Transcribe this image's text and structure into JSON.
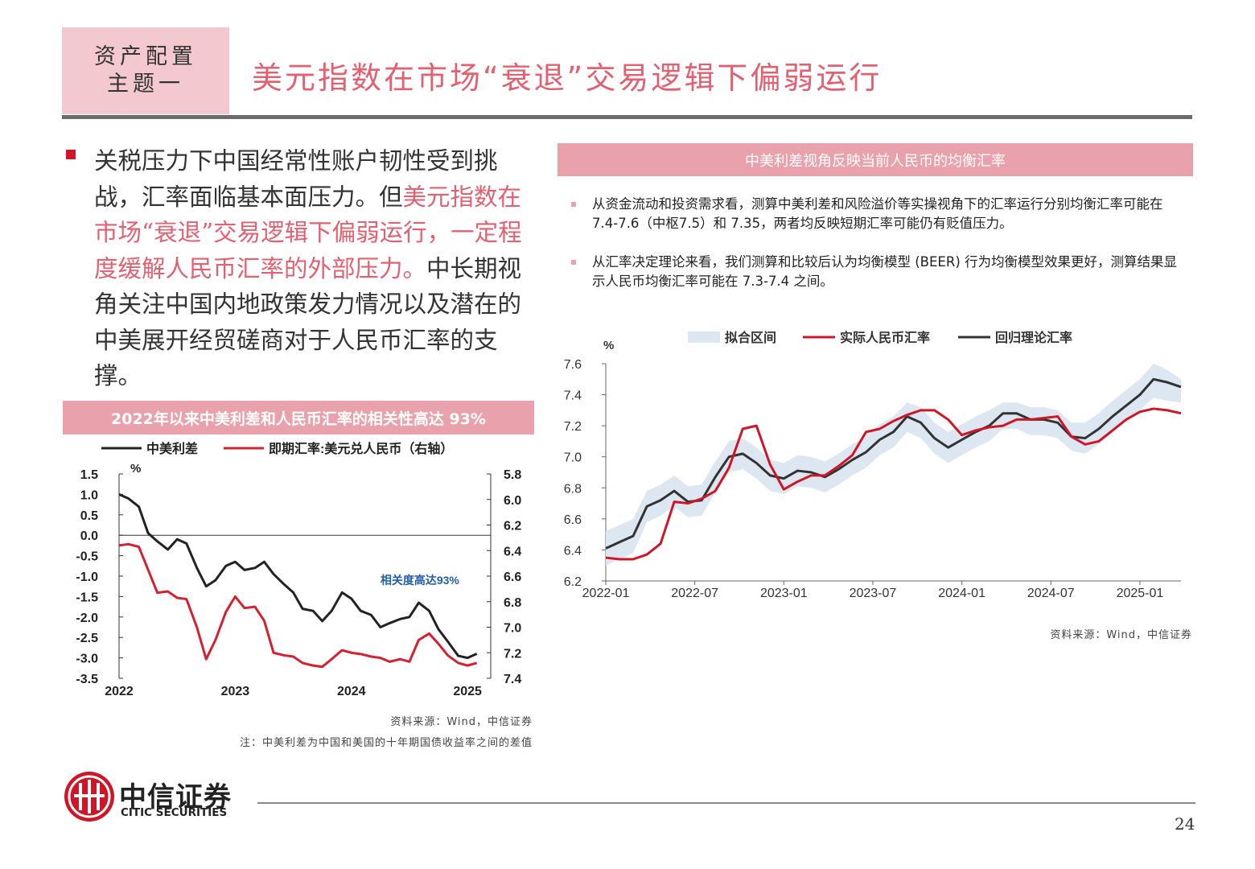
{
  "header": {
    "section_tag_line1": "资产配置",
    "section_tag_line2": "主题一",
    "title": "美元指数在市场“衰退”交易逻辑下偏弱运行"
  },
  "main_text": {
    "part1": "关税压力下中国经常性账户韧性受到挑战，汇率面临基本面压力。但",
    "highlight": "美元指数在市场“衰退”交易逻辑下偏弱运行，一定程度缓解人民币汇率的外部压力。",
    "part2": "中长期视角关注中国内地政策发力情况以及潜在的中美展开经贸磋商对于人民币汇率的支撑。"
  },
  "left_panel": {
    "title": "2022年以来中美利差和人民币汇率的相关性高达 93%",
    "source": "资料来源：Wind，中信证券",
    "note": "注：中美利差为中国和美国的十年期国债收益率之间的差值"
  },
  "right_panel": {
    "title": "中美利差视角反映当前人民币的均衡汇率",
    "bullets": [
      "从资金流动和投资需求看，测算中美利差和风险溢价等实操视角下的汇率运行分别均衡汇率可能在 7.4-7.6（中枢7.5）和 7.35，两者均反映短期汇率可能仍有贬值压力。",
      "从汇率决定理论来看，我们测算和比较后认为均衡模型 (BEER) 行为均衡模型效果更好，测算结果显示人民币均衡汇率可能在 7.3-7.4 之间。"
    ],
    "source": "资料来源：Wind，中信证券"
  },
  "footer": {
    "logo_cn": "中信证券",
    "logo_en": "CITIC SECURITIES",
    "page_number": "24"
  },
  "chart_data": [
    {
      "type": "line",
      "legend": [
        "中美利差",
        "即期汇率:美元兑人民币（右轴）"
      ],
      "ylabel": "%",
      "ylim": [
        -3.5,
        1.5
      ],
      "y_ticks": [
        "1.5",
        "1.0",
        "0.5",
        "0.0",
        "-0.5",
        "-1.0",
        "-1.5",
        "-2.0",
        "-2.5",
        "-3.0",
        "-3.5"
      ],
      "y2lim": [
        5.8,
        7.4
      ],
      "y2_reversed": true,
      "y2_ticks": [
        "5.8",
        "6.0",
        "6.2",
        "6.4",
        "6.6",
        "6.8",
        "7.0",
        "7.2",
        "7.4"
      ],
      "x_ticks": [
        "2022",
        "2023",
        "2024",
        "2025"
      ],
      "xlim": [
        2022.0,
        2025.2
      ],
      "annotation": "相关度高达93%",
      "series": [
        {
          "name": "中美利差",
          "color": "#222222",
          "x": [
            2022.0,
            2022.08,
            2022.17,
            2022.25,
            2022.33,
            2022.42,
            2022.5,
            2022.58,
            2022.67,
            2022.75,
            2022.83,
            2022.92,
            2023.0,
            2023.08,
            2023.17,
            2023.25,
            2023.33,
            2023.42,
            2023.5,
            2023.58,
            2023.67,
            2023.75,
            2023.83,
            2023.92,
            2024.0,
            2024.08,
            2024.17,
            2024.25,
            2024.33,
            2024.42,
            2024.5,
            2024.58,
            2024.67,
            2024.75,
            2024.83,
            2024.92,
            2025.0,
            2025.08
          ],
          "values": [
            1.0,
            0.9,
            0.7,
            0.05,
            -0.15,
            -0.35,
            -0.1,
            -0.2,
            -0.8,
            -1.25,
            -1.1,
            -0.75,
            -0.65,
            -0.85,
            -0.8,
            -0.65,
            -0.95,
            -1.2,
            -1.4,
            -1.8,
            -1.85,
            -2.1,
            -1.85,
            -1.4,
            -1.55,
            -1.85,
            -1.95,
            -2.25,
            -2.15,
            -2.05,
            -2.0,
            -1.65,
            -1.85,
            -2.3,
            -2.6,
            -2.95,
            -3.0,
            -2.9
          ]
        },
        {
          "name": "即期汇率:美元兑人民币（右轴）",
          "color": "#d6202e",
          "axis": "right",
          "x": [
            2022.0,
            2022.08,
            2022.17,
            2022.25,
            2022.33,
            2022.42,
            2022.5,
            2022.58,
            2022.67,
            2022.75,
            2022.83,
            2022.92,
            2023.0,
            2023.08,
            2023.17,
            2023.25,
            2023.33,
            2023.42,
            2023.5,
            2023.58,
            2023.67,
            2023.75,
            2023.83,
            2023.92,
            2024.0,
            2024.08,
            2024.17,
            2024.25,
            2024.33,
            2024.42,
            2024.5,
            2024.58,
            2024.67,
            2024.75,
            2024.83,
            2024.92,
            2025.0,
            2025.08
          ],
          "values": [
            6.36,
            6.35,
            6.37,
            6.55,
            6.73,
            6.72,
            6.77,
            6.78,
            7.0,
            7.25,
            7.1,
            6.88,
            6.76,
            6.85,
            6.84,
            6.95,
            7.2,
            7.22,
            7.23,
            7.28,
            7.3,
            7.31,
            7.25,
            7.18,
            7.2,
            7.21,
            7.23,
            7.24,
            7.27,
            7.25,
            7.27,
            7.1,
            7.05,
            7.13,
            7.22,
            7.28,
            7.3,
            7.28
          ]
        }
      ]
    },
    {
      "type": "line",
      "legend": [
        "拟合区间",
        "实际人民币汇率",
        "回归理论汇率"
      ],
      "ylabel": "%",
      "ylim": [
        6.2,
        7.6
      ],
      "y_ticks": [
        "7.6",
        "7.4",
        "7.2",
        "7.0",
        "6.8",
        "6.6",
        "6.4",
        "6.2"
      ],
      "x_ticks": [
        "2022-01",
        "2022-07",
        "2023-01",
        "2023-07",
        "2024-01",
        "2024-07",
        "2025-01"
      ],
      "xlim": [
        0,
        38
      ],
      "series": [
        {
          "name": "实际人民币汇率",
          "color": "#d01626",
          "values": [
            6.35,
            6.34,
            6.34,
            6.37,
            6.44,
            6.71,
            6.7,
            6.73,
            6.78,
            6.93,
            7.18,
            7.2,
            6.95,
            6.79,
            6.84,
            6.88,
            6.88,
            6.94,
            7.01,
            7.16,
            7.18,
            7.23,
            7.27,
            7.3,
            7.3,
            7.24,
            7.14,
            7.17,
            7.19,
            7.2,
            7.24,
            7.24,
            7.25,
            7.26,
            7.13,
            7.08,
            7.1,
            7.17,
            7.24,
            7.29,
            7.31,
            7.3,
            7.28
          ]
        },
        {
          "name": "回归理论汇率",
          "color": "#333333",
          "values": [
            6.41,
            6.45,
            6.49,
            6.68,
            6.72,
            6.78,
            6.71,
            6.72,
            6.87,
            7.0,
            7.02,
            6.96,
            6.88,
            6.86,
            6.91,
            6.9,
            6.87,
            6.92,
            6.98,
            7.03,
            7.11,
            7.16,
            7.26,
            7.22,
            7.12,
            7.06,
            7.11,
            7.16,
            7.2,
            7.28,
            7.28,
            7.24,
            7.24,
            7.22,
            7.13,
            7.12,
            7.18,
            7.26,
            7.33,
            7.4,
            7.5,
            7.48,
            7.45
          ]
        },
        {
          "name": "拟合区间",
          "color": "#dce7f2",
          "upper": [
            6.52,
            6.56,
            6.6,
            6.78,
            6.82,
            6.88,
            6.81,
            6.82,
            6.97,
            7.1,
            7.12,
            7.06,
            6.98,
            6.96,
            7.01,
            7.0,
            6.97,
            7.02,
            7.08,
            7.13,
            7.21,
            7.26,
            7.35,
            7.32,
            7.22,
            7.16,
            7.21,
            7.26,
            7.3,
            7.35,
            7.35,
            7.32,
            7.32,
            7.3,
            7.22,
            7.22,
            7.28,
            7.36,
            7.43,
            7.5,
            7.6,
            7.56,
            7.5
          ],
          "lower": [
            6.3,
            6.34,
            6.38,
            6.58,
            6.62,
            6.68,
            6.61,
            6.62,
            6.77,
            6.9,
            6.92,
            6.86,
            6.78,
            6.76,
            6.81,
            6.8,
            6.77,
            6.82,
            6.88,
            6.93,
            7.01,
            7.06,
            7.16,
            7.12,
            7.02,
            6.96,
            7.01,
            7.06,
            7.1,
            7.18,
            7.18,
            7.14,
            7.14,
            7.12,
            7.04,
            7.02,
            7.08,
            7.16,
            7.23,
            7.3,
            7.38,
            7.36,
            7.35
          ]
        }
      ]
    }
  ]
}
